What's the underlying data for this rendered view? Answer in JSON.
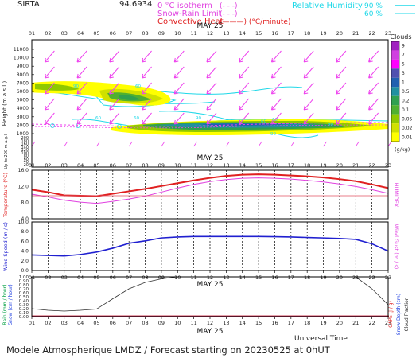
{
  "header": {
    "site": "SIRTA",
    "coords": "94.6934",
    "legend": [
      {
        "label": "0 °C isotherm",
        "sym": "(- - -)",
        "color": "#e040e0"
      },
      {
        "label": "Snow-Rain Limit",
        "sym": "(- - -)",
        "color": "#e040e0"
      },
      {
        "label": "Convective Heat",
        "sym": "(———) (°C/minute)",
        "color": "#e02020"
      },
      {
        "label": "Relative Humidity",
        "sym": "90 %",
        "color": "#20d8e8"
      },
      {
        "label": "",
        "sym": "60 %",
        "color": "#20d8e8"
      }
    ]
  },
  "hours": [
    "01",
    "02",
    "03",
    "04",
    "05",
    "06",
    "07",
    "08",
    "09",
    "10",
    "11",
    "12",
    "13",
    "14",
    "15",
    "16",
    "17",
    "18",
    "19",
    "20",
    "21",
    "22",
    "23"
  ],
  "date_label": "MAY 25",
  "footer": {
    "universal_time": "Universal Time",
    "title": "Modele Atmospherique LMDZ / Forecast starting on 20230525 at 0hUT"
  },
  "colors": {
    "temperature": "#e02020",
    "humidex": "#e040e0",
    "wind": "#2020d0",
    "rain": "#00a040",
    "snow": "#2040e0",
    "cloud_fraction": "#303030",
    "ri": "#20d8e8",
    "arrows": "#ee44ee"
  },
  "chart_data": [
    {
      "type": "heatmap",
      "panel": "clouds",
      "ylabel": "Height (m a.s.l.)",
      "ylabel2": "Up to 200 m a.g.l.",
      "yticks_upper": [
        "11000",
        "10000",
        "9000",
        "8000",
        "7000",
        "6000",
        "5000",
        "4000",
        "3000",
        "2000",
        "1000"
      ],
      "yticks_lower": [
        "200",
        "180",
        "160",
        "140",
        "120",
        "100",
        "80",
        "60",
        "40",
        "20"
      ],
      "colorbar_title": "Clouds",
      "colorbar_unit": "(g/kg)",
      "colorbar_ticks": [
        "9",
        "7",
        "5",
        "3",
        "1",
        "0.5",
        "0.2",
        "0.1",
        "0.05",
        "0.02",
        "0.01"
      ],
      "colorbar_colors": [
        "#a020c0",
        "#d040e0",
        "#ff00ff",
        "#5050b0",
        "#2060b0",
        "#2090a0",
        "#30a050",
        "#50b030",
        "#90c800",
        "#d0e000",
        "#ffff00"
      ],
      "rh_labels": [
        "90",
        "60",
        "60",
        "60",
        "90",
        "60",
        "60",
        "90",
        "90"
      ]
    },
    {
      "type": "line",
      "panel": "temperature",
      "ylabel": "Temperature (°C)",
      "ylabel2": "HUMIDEX",
      "yticks": [
        "16.0",
        "12.0",
        "8.0",
        "4.0"
      ],
      "ylim": [
        4,
        16
      ],
      "x": [
        1,
        2,
        3,
        4,
        5,
        6,
        7,
        8,
        9,
        10,
        11,
        12,
        13,
        14,
        15,
        16,
        17,
        18,
        19,
        20,
        21,
        22,
        23
      ],
      "series": [
        {
          "values": [
            11.2,
            10.6,
            9.8,
            9.7,
            9.6,
            10.2,
            10.8,
            11.4,
            12.1,
            12.8,
            13.5,
            14.1,
            14.6,
            14.9,
            15.0,
            14.9,
            14.7,
            14.5,
            14.2,
            13.8,
            13.3,
            12.5,
            11.6
          ]
        },
        {
          "values": [
            10.1,
            9.4,
            8.6,
            8.1,
            7.8,
            8.3,
            8.9,
            9.6,
            10.6,
            11.6,
            12.5,
            13.2,
            13.7,
            14.0,
            14.1,
            14.0,
            13.8,
            13.5,
            13.1,
            12.6,
            12.0,
            11.2,
            10.3
          ]
        },
        {
          "values": [
            9.7,
            9.7,
            9.7,
            9.7,
            9.7,
            9.7,
            9.7,
            9.7,
            9.7,
            9.7,
            9.7,
            9.7,
            9.7,
            9.7,
            9.7,
            9.7,
            9.7,
            9.7,
            9.7,
            9.7,
            9.7,
            9.7,
            9.7
          ]
        }
      ]
    },
    {
      "type": "line",
      "panel": "wind",
      "ylabel": "Wind Speed (m / s)",
      "ylabel2": "Wind Gust (m / s)",
      "yticks": [
        "10.0",
        "8.0",
        "6.0",
        "4.0",
        "2.0",
        "0.0"
      ],
      "ylim": [
        0,
        10
      ],
      "x": [
        1,
        2,
        3,
        4,
        5,
        6,
        7,
        8,
        9,
        10,
        11,
        12,
        13,
        14,
        15,
        16,
        17,
        18,
        19,
        20,
        21,
        22,
        23
      ],
      "values": [
        3.2,
        3.1,
        3.0,
        3.3,
        3.8,
        4.6,
        5.6,
        6.1,
        6.7,
        6.9,
        7.0,
        7.0,
        7.0,
        7.0,
        7.0,
        6.95,
        6.9,
        6.8,
        6.7,
        6.6,
        6.4,
        5.5,
        4.0
      ]
    },
    {
      "type": "line",
      "panel": "precipitation",
      "ylabel": "Rain (mm / hour)",
      "ylabel_snow": "Snow (cm / hour)",
      "ylabel2": "CAPE (J / g)",
      "ylabel2_snow": "Snow Depth (cm)",
      "ylabel2_cloud": "Cloud Fraction",
      "yticks": [
        "1.00",
        "0.90",
        "0.80",
        "0.70",
        "0.60",
        "0.50",
        "0.40",
        "0.30",
        "0.20",
        "0.10",
        "0.00"
      ],
      "ylim": [
        0,
        1
      ],
      "x": [
        1,
        2,
        3,
        4,
        5,
        6,
        7,
        8,
        9,
        10,
        11,
        12,
        13,
        14,
        15,
        16,
        17,
        18,
        19,
        20,
        21,
        22,
        23
      ],
      "cloud_fraction": [
        0.2,
        0.16,
        0.14,
        0.16,
        0.19,
        0.45,
        0.7,
        0.86,
        0.95,
        1.0,
        1.0,
        1.0,
        1.0,
        1.0,
        1.0,
        1.0,
        1.0,
        1.0,
        1.0,
        1.0,
        1.0,
        0.7,
        0.3
      ],
      "rain": [
        0,
        0,
        0,
        0,
        0,
        0,
        0,
        0,
        0,
        0,
        0,
        0,
        0,
        0,
        0,
        0,
        0,
        0,
        0,
        0,
        0,
        0,
        0
      ]
    }
  ]
}
